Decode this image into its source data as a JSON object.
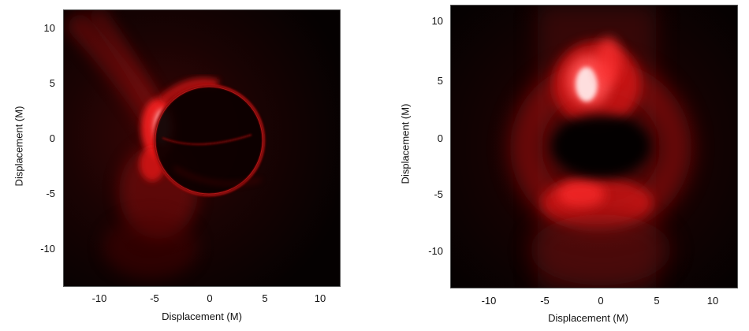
{
  "chart_data": [
    {
      "type": "heatmap",
      "title": "",
      "xlabel": "Displacement (M)",
      "ylabel": "Displacement (M)",
      "xlim": [
        -13,
        12
      ],
      "ylim": [
        -13.5,
        12
      ],
      "x_ticks": [
        "-10",
        "-5",
        "0",
        "5",
        "10"
      ],
      "y_ticks": [
        "10",
        "5",
        "0",
        "-5",
        "-10"
      ],
      "colormap": [
        "#000000",
        "#ff0000",
        "#ffffff"
      ],
      "description_values": {
        "ring_center": [
          0,
          0
        ],
        "ring_radius": 5
      }
    },
    {
      "type": "heatmap",
      "title": "",
      "xlabel": "Displacement (M)",
      "ylabel": "Displacement (M)",
      "xlim": [
        -13,
        12
      ],
      "ylim": [
        -13,
        12
      ],
      "x_ticks": [
        "-10",
        "-5",
        "0",
        "5",
        "10"
      ],
      "y_ticks": [
        "10",
        "5",
        "0",
        "-5",
        "-10"
      ],
      "colormap": [
        "#000000",
        "#ff0000",
        "#ffffff"
      ]
    }
  ]
}
